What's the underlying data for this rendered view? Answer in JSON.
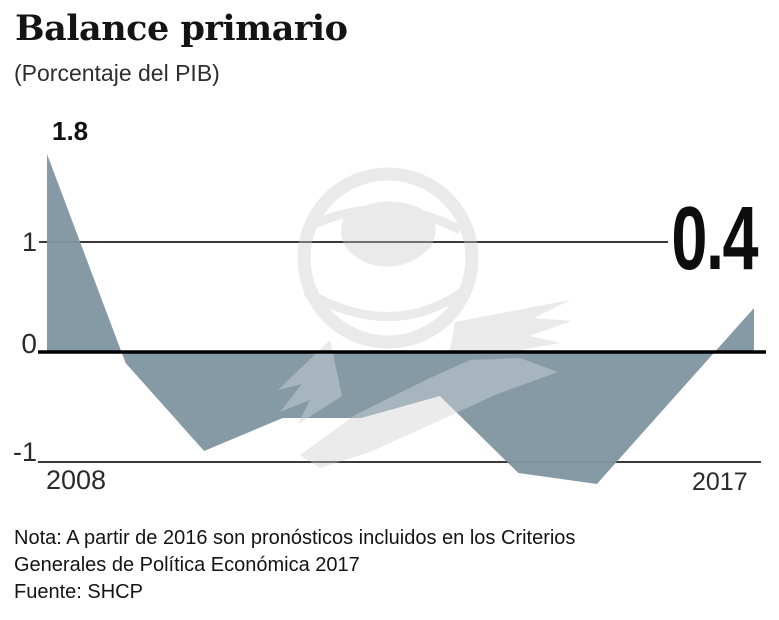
{
  "header": {
    "title": "Balance primario",
    "subtitle": "(Porcentaje del PIB)"
  },
  "chart_data": {
    "type": "area",
    "x": [
      2008,
      2009,
      2010,
      2011,
      2012,
      2013,
      2014,
      2015,
      2016,
      2017
    ],
    "values": [
      1.8,
      -0.1,
      -0.9,
      -0.6,
      -0.6,
      -0.4,
      -1.1,
      -1.2,
      -0.4,
      0.4
    ],
    "x_axis_labels": {
      "start": "2008",
      "end": "2017"
    },
    "y_ticks": [
      1,
      0,
      -1
    ],
    "y_tick_labels": {
      "one": "1",
      "zero": "0",
      "minus_one": "-1"
    },
    "ylim": [
      -1.4,
      2.0
    ],
    "annotations": {
      "start_value_label": "1.8",
      "end_value_label": "0.4"
    },
    "legend": "none",
    "grid": "horizontal gridlines at y=1 and y=-1, bold baseline at y=0",
    "colors": {
      "area_fill": "#7F95A1",
      "zero_line": "#000000",
      "gridline": "#3A3A3A",
      "watermark": "#E3E3E3",
      "text": "#141414"
    }
  },
  "watermark": {
    "name": "eagle-globe-watermark"
  },
  "footer": {
    "note_line1": "Nota: A partir de 2016 son pronósticos incluidos en los Criterios",
    "note_line2": "Generales de Política Económica 2017",
    "source": "Fuente: SHCP"
  }
}
